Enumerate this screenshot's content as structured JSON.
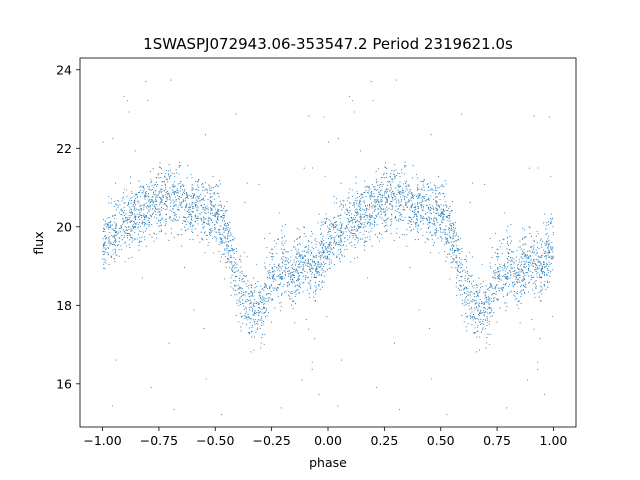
{
  "chart_data": {
    "type": "scatter",
    "title": "1SWASPJ072943.06-353547.2 Period 2319621.0s",
    "xlabel": "phase",
    "ylabel": "flux",
    "xlim": [
      -1.1,
      1.1
    ],
    "ylim": [
      14.9,
      24.3
    ],
    "xticks": [
      -1.0,
      -0.75,
      -0.5,
      -0.25,
      0.0,
      0.25,
      0.5,
      0.75,
      1.0
    ],
    "xtick_labels": [
      "−1.00",
      "−0.75",
      "−0.50",
      "−0.25",
      "0.00",
      "0.25",
      "0.50",
      "0.75",
      "1.00"
    ],
    "yticks": [
      16,
      18,
      20,
      22,
      24
    ],
    "ytick_labels": [
      "16",
      "18",
      "20",
      "22",
      "24"
    ],
    "grid": false,
    "point_color": "#1f77b4",
    "series": [
      {
        "profile_phase": [
          -1.0,
          -0.9,
          -0.8,
          -0.75,
          -0.7,
          -0.6,
          -0.5,
          -0.45,
          -0.4,
          -0.35,
          -0.3,
          -0.25,
          -0.2,
          -0.15,
          -0.1,
          -0.05,
          0.0
        ],
        "profile_flux": [
          19.6,
          20.1,
          20.5,
          20.7,
          20.7,
          20.5,
          20.3,
          19.8,
          18.5,
          18.0,
          17.8,
          18.7,
          19.0,
          18.8,
          19.2,
          19.0,
          19.6
        ],
        "scatter_width": 0.6
      }
    ]
  }
}
